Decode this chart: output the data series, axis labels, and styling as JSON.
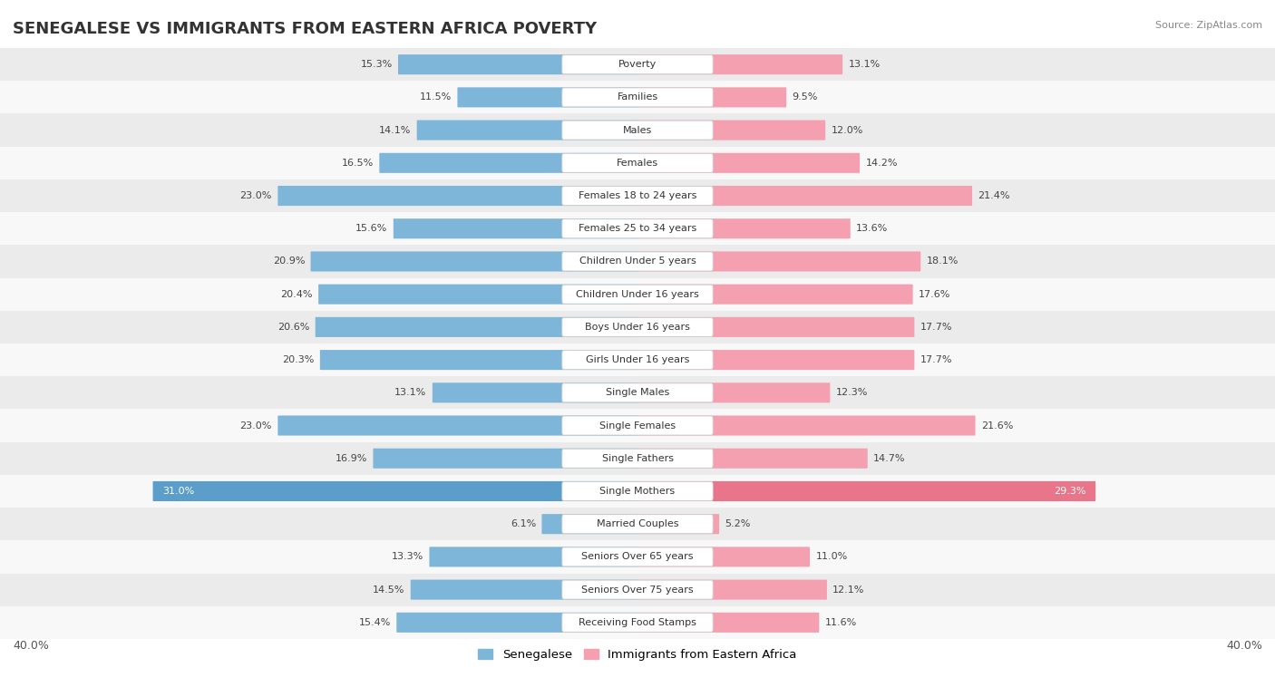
{
  "title": "SENEGALESE VS IMMIGRANTS FROM EASTERN AFRICA POVERTY",
  "source": "Source: ZipAtlas.com",
  "categories": [
    "Poverty",
    "Families",
    "Males",
    "Females",
    "Females 18 to 24 years",
    "Females 25 to 34 years",
    "Children Under 5 years",
    "Children Under 16 years",
    "Boys Under 16 years",
    "Girls Under 16 years",
    "Single Males",
    "Single Females",
    "Single Fathers",
    "Single Mothers",
    "Married Couples",
    "Seniors Over 65 years",
    "Seniors Over 75 years",
    "Receiving Food Stamps"
  ],
  "senegalese": [
    15.3,
    11.5,
    14.1,
    16.5,
    23.0,
    15.6,
    20.9,
    20.4,
    20.6,
    20.3,
    13.1,
    23.0,
    16.9,
    31.0,
    6.1,
    13.3,
    14.5,
    15.4
  ],
  "eastern_africa": [
    13.1,
    9.5,
    12.0,
    14.2,
    21.4,
    13.6,
    18.1,
    17.6,
    17.7,
    17.7,
    12.3,
    21.6,
    14.7,
    29.3,
    5.2,
    11.0,
    12.1,
    11.6
  ],
  "blue_color": "#7EB6D9",
  "pink_color": "#F4A0B0",
  "blue_highlight": "#5B9EC9",
  "pink_highlight": "#E8758A",
  "bg_row_light": "#EBEBEB",
  "bg_row_white": "#F8F8F8",
  "max_val": 40.0,
  "legend_blue": "Senegalese",
  "legend_pink": "Immigrants from Eastern Africa",
  "title_fontsize": 13,
  "source_fontsize": 8,
  "label_fontsize": 8,
  "value_fontsize": 8
}
